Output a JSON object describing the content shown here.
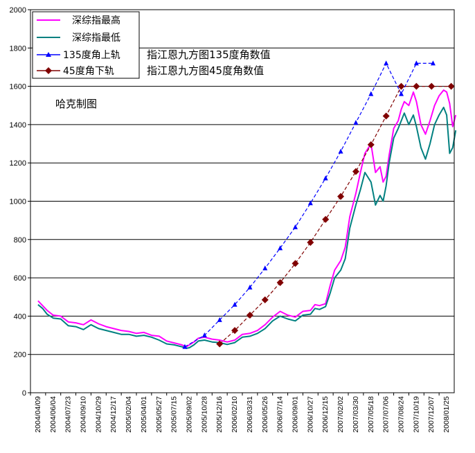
{
  "chart_data": {
    "type": "line",
    "ylim": [
      0,
      2000
    ],
    "yticks": [
      0,
      200,
      400,
      600,
      800,
      1000,
      1200,
      1400,
      1600,
      1800,
      2000
    ],
    "x_tick_labels": [
      "2004/04/09",
      "2004/06/04",
      "2004/07/23",
      "2004/09/10",
      "2004/10/29",
      "2004/12/17",
      "2005/02/04",
      "2005/04/01",
      "2005/05/27",
      "2005/07/15",
      "2005/09/02",
      "2005/10/28",
      "2005/12/16",
      "2006/02/10",
      "2006/03/31",
      "2006/05/26",
      "2006/07/14",
      "2006/09/01",
      "2006/10/27",
      "2006/12/15",
      "2007/02/02",
      "2007/03/30",
      "2007/05/18",
      "2007/07/06",
      "2007/08/24",
      "2007/10/19",
      "2007/12/07",
      "2008/01/25"
    ],
    "grid": "horizontal",
    "legend_position": "top-left",
    "annotations": [
      "指江恩九方图135度角数值",
      "指江恩九方图45度角数值",
      "哈克制图"
    ],
    "series": [
      {
        "name": "深综指最高",
        "color": "#ff00ff",
        "x": [
          0,
          0.3,
          0.6,
          1,
          1.5,
          2,
          2.5,
          3,
          3.5,
          4,
          4.5,
          5,
          5.5,
          6,
          6.5,
          7,
          7.5,
          8,
          8.5,
          9,
          9.5,
          9.8,
          10,
          10.3,
          10.6,
          11,
          11.5,
          12,
          12.5,
          13,
          13.5,
          14,
          14.5,
          15,
          15.5,
          16,
          16.5,
          17,
          17.5,
          18,
          18.3,
          18.6,
          19,
          19.3,
          19.6,
          20,
          20.3,
          20.6,
          21,
          21.3,
          21.6,
          22,
          22.3,
          22.6,
          22.8,
          23,
          23.2,
          23.5,
          23.8,
          24,
          24.2,
          24.5,
          24.8,
          25,
          25.3,
          25.6,
          25.9,
          26.2,
          26.5,
          26.8,
          27,
          27.2,
          27.4,
          27.6
        ],
        "values": [
          480,
          455,
          430,
          405,
          400,
          370,
          365,
          355,
          380,
          360,
          345,
          335,
          325,
          320,
          310,
          315,
          300,
          295,
          270,
          260,
          250,
          240,
          250,
          265,
          285,
          290,
          280,
          275,
          265,
          275,
          305,
          310,
          325,
          355,
          395,
          425,
          405,
          395,
          425,
          430,
          460,
          455,
          465,
          560,
          640,
          690,
          760,
          920,
          1040,
          1150,
          1250,
          1300,
          1150,
          1180,
          1100,
          1130,
          1240,
          1380,
          1420,
          1480,
          1520,
          1500,
          1570,
          1520,
          1400,
          1350,
          1420,
          1500,
          1550,
          1580,
          1570,
          1510,
          1390,
          1450
        ]
      },
      {
        "name": "深综指最低",
        "color": "#008080",
        "x": [
          0,
          0.3,
          0.6,
          1,
          1.5,
          2,
          2.5,
          3,
          3.5,
          4,
          4.5,
          5,
          5.5,
          6,
          6.5,
          7,
          7.5,
          8,
          8.5,
          9,
          9.5,
          9.8,
          10,
          10.3,
          10.6,
          11,
          11.5,
          12,
          12.5,
          13,
          13.5,
          14,
          14.5,
          15,
          15.5,
          16,
          16.5,
          17,
          17.5,
          18,
          18.3,
          18.6,
          19,
          19.3,
          19.6,
          20,
          20.3,
          20.6,
          21,
          21.3,
          21.6,
          22,
          22.3,
          22.6,
          22.8,
          23,
          23.2,
          23.5,
          23.8,
          24,
          24.2,
          24.5,
          24.8,
          25,
          25.3,
          25.6,
          25.9,
          26.2,
          26.5,
          26.8,
          27,
          27.2,
          27.4,
          27.6
        ],
        "values": [
          460,
          440,
          410,
          390,
          385,
          350,
          345,
          330,
          355,
          335,
          325,
          315,
          305,
          305,
          295,
          300,
          290,
          275,
          255,
          250,
          240,
          232,
          235,
          250,
          270,
          275,
          265,
          262,
          252,
          262,
          290,
          295,
          310,
          335,
          375,
          400,
          385,
          375,
          405,
          410,
          440,
          435,
          450,
          520,
          600,
          640,
          700,
          860,
          980,
          1060,
          1150,
          1100,
          980,
          1030,
          1000,
          1080,
          1200,
          1330,
          1380,
          1420,
          1460,
          1400,
          1450,
          1390,
          1280,
          1220,
          1300,
          1400,
          1450,
          1490,
          1450,
          1250,
          1280,
          1370
        ]
      },
      {
        "name": "135度角上轨",
        "color": "#0000ff",
        "marker": "triangle",
        "x": [
          9.7,
          11,
          12,
          13,
          14,
          15,
          16,
          17,
          18,
          19,
          20,
          21,
          22,
          23,
          24,
          25,
          26.1
        ],
        "values": [
          240,
          300,
          380,
          460,
          550,
          650,
          755,
          865,
          990,
          1120,
          1260,
          1410,
          1560,
          1720,
          1560,
          1720,
          1720
        ]
      },
      {
        "name": "45度角下轨",
        "color": "#800000",
        "marker": "diamond",
        "x": [
          12,
          13,
          14,
          15,
          16,
          17,
          18,
          19,
          20,
          21,
          22,
          23,
          24,
          25,
          26,
          27.3
        ],
        "values": [
          255,
          325,
          405,
          485,
          575,
          675,
          785,
          905,
          1025,
          1155,
          1295,
          1445,
          1600,
          1600,
          1600,
          1600
        ]
      }
    ]
  }
}
